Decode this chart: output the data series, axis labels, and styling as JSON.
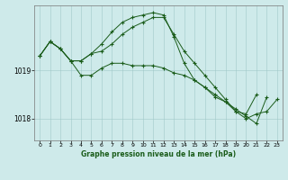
{
  "background_color": "#ceeaea",
  "plot_bg_color": "#ceeaea",
  "line_color": "#1a5c1a",
  "grid_color": "#a0c8c8",
  "xlabel": "Graphe pression niveau de la mer (hPa)",
  "xlim": [
    -0.5,
    23.5
  ],
  "ylim": [
    1017.55,
    1020.35
  ],
  "yticks": [
    1018,
    1019
  ],
  "xticks": [
    0,
    1,
    2,
    3,
    4,
    5,
    6,
    7,
    8,
    9,
    10,
    11,
    12,
    13,
    14,
    15,
    16,
    17,
    18,
    19,
    20,
    21,
    22,
    23
  ],
  "series": [
    [
      1019.3,
      1019.6,
      1019.45,
      1019.2,
      1018.9,
      1018.9,
      1019.05,
      1019.15,
      1019.15,
      1019.1,
      1019.1,
      1019.1,
      1019.05,
      1018.95,
      1018.9,
      1018.8,
      1018.65,
      1018.5,
      1018.35,
      1018.2,
      1018.05,
      1017.9,
      1018.45,
      null
    ],
    [
      1019.3,
      1019.6,
      1019.45,
      1019.2,
      1019.2,
      1019.35,
      1019.4,
      1019.55,
      1019.75,
      1019.9,
      1020.0,
      1020.1,
      1020.1,
      1019.75,
      1019.4,
      1019.15,
      1018.9,
      1018.65,
      1018.4,
      1018.15,
      1018.0,
      1018.1,
      1018.15,
      1018.4
    ],
    [
      1019.3,
      1019.6,
      1019.45,
      1019.2,
      1019.2,
      1019.35,
      1019.55,
      1019.8,
      1020.0,
      1020.1,
      1020.15,
      1020.2,
      1020.15,
      1019.7,
      1019.15,
      1018.8,
      1018.65,
      1018.45,
      1018.35,
      1018.15,
      1018.1,
      1018.5,
      null,
      null
    ]
  ]
}
